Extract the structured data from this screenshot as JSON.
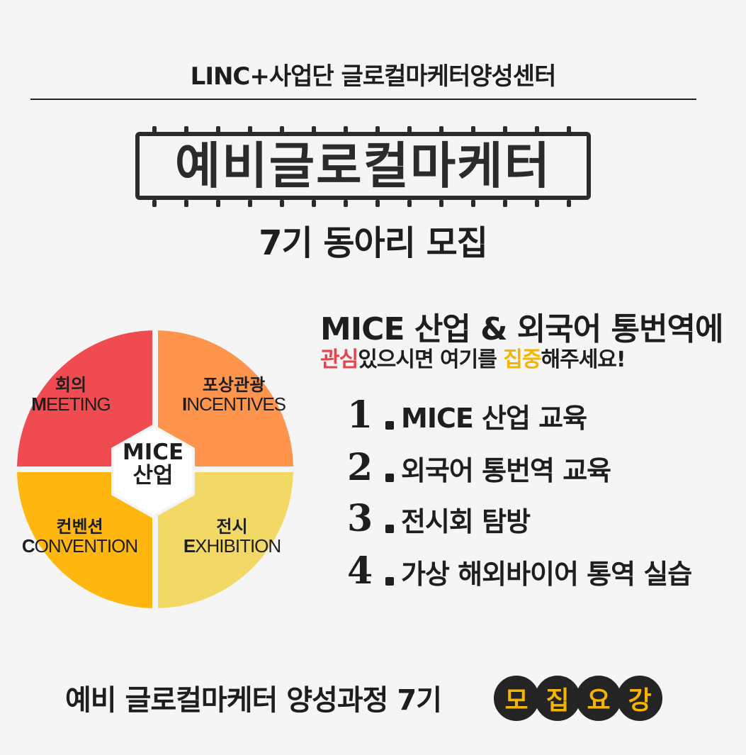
{
  "header": {
    "org": "LINC+사업단 글로컬마케터양성센터",
    "title": "예비글로컬마케터",
    "subtitle": "7기 동아리 모집"
  },
  "pie": {
    "center": [
      "MICE",
      "산업"
    ],
    "quadrants": [
      {
        "ko": "회의",
        "en_initial": "M",
        "en_rest": "EETING",
        "color": "#ef4b51"
      },
      {
        "ko": "포상관광",
        "en_initial": "I",
        "en_rest": "NCENTIVES",
        "color": "#ff944d"
      },
      {
        "ko": "컨벤션",
        "en_initial": "C",
        "en_rest": "ONVENTION",
        "color": "#ffb70f"
      },
      {
        "ko": "전시",
        "en_initial": "E",
        "en_rest": "XHIBITION",
        "color": "#f2d966"
      }
    ]
  },
  "intro": {
    "headline": "MICE 산업 & 외국어 통번역에",
    "sub_red": "관심",
    "sub_mid": "있으시면 여기를 ",
    "sub_yellow": "집중",
    "sub_end": "해주세요!"
  },
  "list": [
    {
      "num": "1",
      "text": "MICE 산업 교육"
    },
    {
      "num": "2",
      "text": "외국어 통번역 교육"
    },
    {
      "num": "3",
      "text": "전시회 탐방"
    },
    {
      "num": "4",
      "text": "가상 해외바이어 통역 실습"
    }
  ],
  "footer": {
    "text": "예비 글로컬마케터 양성과정 7기",
    "badge": [
      "모",
      "집",
      "요",
      "강"
    ]
  },
  "colors": {
    "accent_red": "#e8434a",
    "accent_yellow": "#f5b400",
    "dark": "#242424"
  }
}
